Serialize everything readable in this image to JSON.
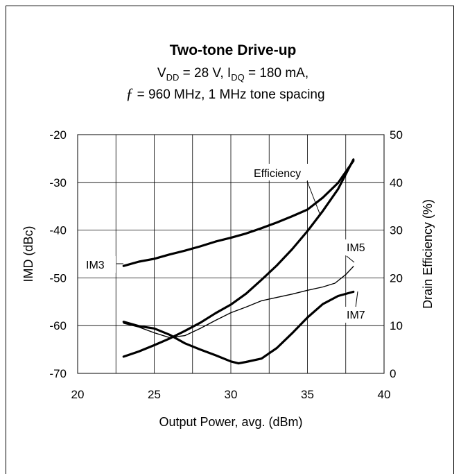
{
  "chart_data": {
    "type": "line",
    "title": "Two-tone Drive-up",
    "subtitle_line1": {
      "vdd_prefix": "V",
      "vdd_sub": "DD",
      "vdd_value": " = 28 V, I",
      "idq_sub": "DQ",
      "idq_value": " = 180 mA,"
    },
    "subtitle_line2": {
      "f_symbol": "ƒ",
      "rest": " = 960 MHz, 1 MHz tone spacing"
    },
    "xlabel": "Output Power, avg. (dBm)",
    "ylabel_left": "IMD (dBc)",
    "ylabel_right": "Drain Efficiency (%)",
    "xlim": [
      20,
      40
    ],
    "ylim_left": [
      -70,
      -20
    ],
    "ylim_right": [
      0,
      50
    ],
    "x_ticks": [
      "20",
      "25",
      "30",
      "35",
      "40"
    ],
    "y_left_ticks": [
      "-70",
      "-60",
      "-50",
      "-40",
      "-30",
      "-20"
    ],
    "y_right_ticks": [
      "0",
      "10",
      "20",
      "30",
      "40",
      "50"
    ],
    "grid": true,
    "series": [
      {
        "name": "Efficiency",
        "axis": "right",
        "x": [
          23,
          24,
          25,
          26,
          27,
          28,
          29,
          30,
          31,
          32,
          33,
          34,
          35,
          36,
          37,
          38
        ],
        "y": [
          3.5,
          4.6,
          5.9,
          7.3,
          8.9,
          10.6,
          12.6,
          14.4,
          16.7,
          19.6,
          22.6,
          26.0,
          29.8,
          34.0,
          38.6,
          44.8
        ]
      },
      {
        "name": "IM3",
        "axis": "left",
        "x": [
          23,
          24,
          25,
          26,
          27,
          28,
          29,
          30,
          31,
          32,
          33,
          34,
          35,
          36,
          37,
          38
        ],
        "y": [
          -47.5,
          -46.6,
          -46.0,
          -45.1,
          -44.3,
          -43.4,
          -42.4,
          -41.6,
          -40.7,
          -39.6,
          -38.4,
          -37.1,
          -35.7,
          -33.2,
          -30.1,
          -25.5
        ]
      },
      {
        "name": "IM5",
        "axis": "left",
        "x": [
          23,
          24,
          25,
          26,
          27,
          28,
          29,
          30,
          31,
          32,
          33,
          34,
          35,
          36,
          36.8,
          37.5,
          38
        ],
        "y": [
          -59.5,
          -60.3,
          -61.5,
          -62.5,
          -62.1,
          -60.6,
          -58.9,
          -57.3,
          -56.1,
          -54.8,
          -54.1,
          -53.4,
          -52.6,
          -51.9,
          -51.1,
          -49.3,
          -47.6
        ]
      },
      {
        "name": "IM7",
        "axis": "left",
        "x": [
          23,
          24,
          25,
          26,
          27,
          28,
          29,
          30,
          30.5,
          31,
          32,
          33,
          34,
          35,
          36,
          37,
          38
        ],
        "y": [
          -59.2,
          -60.1,
          -60.6,
          -61.9,
          -63.7,
          -65.0,
          -66.2,
          -67.5,
          -67.9,
          -67.6,
          -66.9,
          -64.7,
          -61.6,
          -58.3,
          -55.5,
          -53.8,
          -52.9
        ]
      }
    ],
    "annotations": [
      "Efficiency",
      "IM3",
      "IM5",
      "IM7"
    ]
  }
}
